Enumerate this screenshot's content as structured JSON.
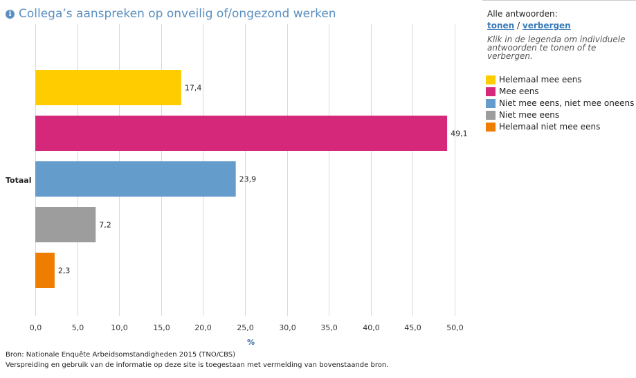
{
  "title": "Collega’s aanspreken op onveilig of/ongezond werken",
  "info_icon": "info-icon",
  "legend_panel": {
    "all_answers_label": "Alle antwoorden:",
    "show_label": "tonen",
    "separator": "/",
    "hide_label": "verbergen",
    "hint": "Klik in de legenda om individuele antwoorden te tonen of te verbergen."
  },
  "chart_data": {
    "type": "bar",
    "orientation": "horizontal",
    "categories": [
      "Totaal"
    ],
    "series": [
      {
        "name": "Helemaal mee eens",
        "values": [
          17.4
        ],
        "label": "17,4",
        "color": "#ffcc00"
      },
      {
        "name": "Mee eens",
        "values": [
          49.1
        ],
        "label": "49,1",
        "color": "#d6287a"
      },
      {
        "name": "Niet mee eens, niet mee oneens",
        "values": [
          23.9
        ],
        "label": "23,9",
        "color": "#649ccb"
      },
      {
        "name": "Niet mee eens",
        "values": [
          7.2
        ],
        "label": "7,2",
        "color": "#9d9d9d"
      },
      {
        "name": "Helemaal niet mee eens",
        "values": [
          2.3
        ],
        "label": "2,3",
        "color": "#ee7d00"
      }
    ],
    "xlim": [
      0,
      50
    ],
    "xticks": [
      "0,0",
      "5,0",
      "10,0",
      "15,0",
      "20,0",
      "25,0",
      "30,0",
      "35,0",
      "40,0",
      "45,0",
      "50,0"
    ],
    "xlabel": "%",
    "grid": true,
    "legend_position": "right"
  },
  "source_line1": "Bron: Nationale Enquête Arbeidsomstandigheden 2015 (TNO/CBS)",
  "source_line2": "Verspreiding en gebruik van de informatie op deze site is toegestaan met vermelding van bovenstaande bron."
}
